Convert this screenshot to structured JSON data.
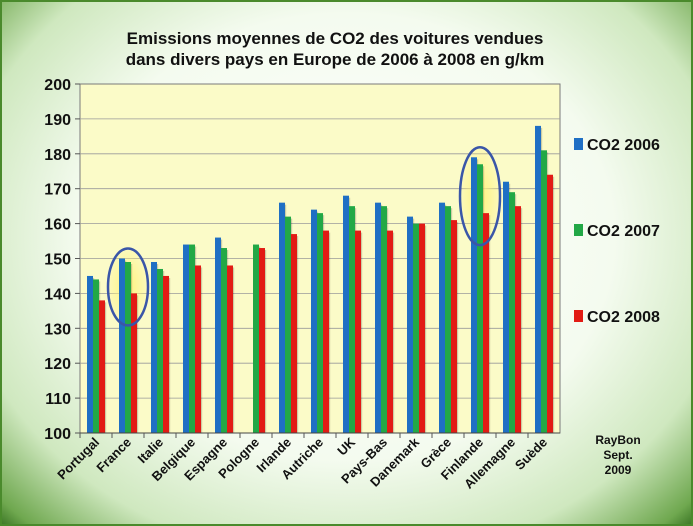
{
  "chart_data": {
    "type": "bar",
    "title_lines": [
      "Emissions moyennes de CO2 des voitures vendues",
      "dans divers pays en Europe de 2006 à 2008 en g/km"
    ],
    "categories": [
      "Portugal",
      "France",
      "Italie",
      "Belgique",
      "Espagne",
      "Pologne",
      "Irlande",
      "Autriche",
      "UK",
      "Pays-Bas",
      "Danemark",
      "Grèce",
      "Finlande",
      "Allemagne",
      "Suède"
    ],
    "series": [
      {
        "name": "CO2 2006",
        "color": "#1f6fc4",
        "values": [
          145,
          150,
          149,
          154,
          156,
          100,
          166,
          164,
          168,
          166,
          162,
          166,
          179,
          172,
          188
        ]
      },
      {
        "name": "CO2 2007",
        "color": "#22a846",
        "values": [
          144,
          149,
          147,
          154,
          153,
          154,
          162,
          163,
          165,
          165,
          160,
          165,
          177,
          169,
          181
        ]
      },
      {
        "name": "CO2 2008",
        "color": "#e21b14",
        "values": [
          138,
          140,
          145,
          148,
          148,
          153,
          157,
          158,
          158,
          158,
          160,
          161,
          163,
          165,
          174
        ]
      }
    ],
    "ylim": [
      100,
      200
    ],
    "yticks": [
      "100",
      "110",
      "120",
      "130",
      "140",
      "150",
      "160",
      "170",
      "180",
      "190",
      "200"
    ],
    "highlighted_categories": [
      "France",
      "Finlande"
    ],
    "plot_background": "#fbfbc8",
    "highlight_color": "#3a56a8",
    "legend_position": "right",
    "credit_lines": [
      "RayBon",
      "Sept.",
      "2009"
    ]
  }
}
